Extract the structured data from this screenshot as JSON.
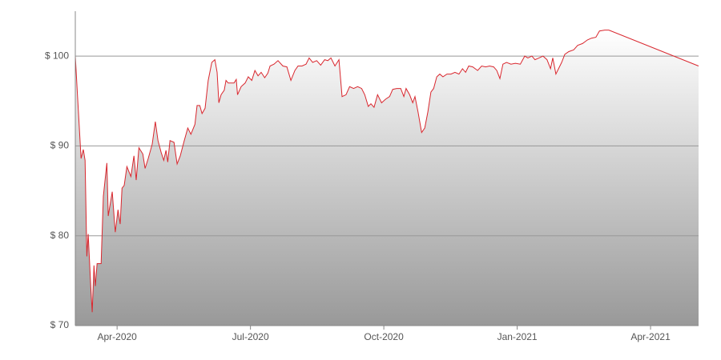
{
  "chart_data": {
    "type": "area",
    "color": "#d9272e",
    "x": [
      3.06,
      3.11,
      3.19,
      3.24,
      3.28,
      3.32,
      3.35,
      3.41,
      3.44,
      3.48,
      3.51,
      3.55,
      3.64,
      3.69,
      3.77,
      3.8,
      3.89,
      3.96,
      4.02,
      4.07,
      4.11,
      4.16,
      4.22,
      4.31,
      4.38,
      4.43,
      4.49,
      4.58,
      4.63,
      4.7,
      4.79,
      4.86,
      4.92,
      4.99,
      5.05,
      5.1,
      5.14,
      5.19,
      5.28,
      5.35,
      5.42,
      5.51,
      5.59,
      5.66,
      5.75,
      5.8,
      5.86,
      5.91,
      5.98,
      6.05,
      6.13,
      6.2,
      6.25,
      6.29,
      6.34,
      6.41,
      6.45,
      6.5,
      6.63,
      6.68,
      6.71,
      6.79,
      6.88,
      6.95,
      7.03,
      7.1,
      7.17,
      7.24,
      7.32,
      7.39,
      7.44,
      7.53,
      7.62,
      7.73,
      7.82,
      7.91,
      8.0,
      8.07,
      8.16,
      8.25,
      8.32,
      8.4,
      8.49,
      8.58,
      8.67,
      8.74,
      8.81,
      8.9,
      8.99,
      9.06,
      9.15,
      9.23,
      9.32,
      9.41,
      9.5,
      9.57,
      9.65,
      9.71,
      9.78,
      9.86,
      9.95,
      10.04,
      10.13,
      10.2,
      10.29,
      10.38,
      10.45,
      10.5,
      10.58,
      10.65,
      10.7,
      10.77,
      10.85,
      10.92,
      10.99,
      11.06,
      11.12,
      11.19,
      11.26,
      11.33,
      11.42,
      11.51,
      11.6,
      11.69,
      11.77,
      11.84,
      11.91,
      12.0,
      12.11,
      12.2,
      12.29,
      12.38,
      12.47,
      12.54,
      12.61,
      12.68,
      12.76,
      12.86,
      12.96,
      13.07,
      13.17,
      13.24,
      13.33,
      13.4,
      13.49,
      13.58,
      13.67,
      13.75,
      13.8,
      13.87,
      13.93,
      14.0,
      14.07,
      14.16,
      14.27,
      14.36,
      14.47,
      14.58,
      14.67,
      14.77,
      14.85,
      14.97,
      15.06,
      17.08
    ],
    "values": [
      100,
      95.5,
      88.6,
      89.6,
      88.4,
      77.7,
      80.2,
      74.2,
      71.5,
      76.7,
      74.4,
      76.9,
      76.9,
      84.4,
      88.1,
      82.2,
      84.9,
      80.4,
      82.9,
      81.3,
      85.3,
      85.6,
      87.7,
      86.6,
      88.9,
      86.2,
      89.8,
      89.1,
      87.5,
      88.6,
      90.2,
      92.7,
      90.6,
      89.3,
      88.4,
      89.5,
      88.2,
      90.6,
      90.4,
      88.0,
      88.9,
      90.6,
      92.0,
      91.3,
      92.4,
      94.5,
      94.5,
      93.6,
      94.2,
      97.3,
      99.3,
      99.6,
      98.2,
      94.8,
      95.7,
      96.2,
      97.3,
      97.0,
      97.0,
      97.4,
      95.7,
      96.6,
      97.0,
      97.7,
      97.3,
      98.4,
      97.8,
      98.2,
      97.6,
      98.1,
      98.9,
      99.1,
      99.5,
      98.9,
      98.8,
      97.3,
      98.4,
      98.9,
      98.9,
      99.1,
      99.8,
      99.3,
      99.5,
      99.0,
      99.6,
      99.5,
      99.8,
      98.9,
      99.6,
      95.5,
      95.7,
      96.6,
      96.4,
      96.6,
      96.4,
      95.7,
      94.4,
      94.7,
      94.3,
      95.7,
      94.8,
      95.2,
      95.5,
      96.3,
      96.4,
      96.4,
      95.5,
      96.4,
      95.7,
      94.8,
      95.5,
      93.8,
      91.5,
      92.0,
      93.8,
      96.0,
      96.4,
      97.7,
      98.0,
      97.7,
      98.0,
      98.0,
      98.2,
      98.0,
      98.6,
      98.2,
      98.9,
      98.8,
      98.4,
      98.9,
      98.8,
      98.9,
      98.8,
      98.4,
      97.5,
      99.1,
      99.3,
      99.1,
      99.2,
      99.1,
      100.0,
      99.8,
      100.0,
      99.6,
      99.8,
      100.0,
      99.6,
      98.6,
      99.8,
      98.0,
      98.6,
      99.3,
      100.2,
      100.5,
      100.7,
      101.2,
      101.4,
      101.8,
      102.0,
      102.1,
      102.8,
      102.9,
      102.9,
      98.9
    ],
    "xlim": [
      3.06,
      17.08
    ],
    "xticks": [
      {
        "value": 4,
        "label": "Apr-2020"
      },
      {
        "value": 7,
        "label": "Jul-2020"
      },
      {
        "value": 10,
        "label": "Oct-2020"
      },
      {
        "value": 13,
        "label": "Jan-2021"
      },
      {
        "value": 16,
        "label": "Apr-2021"
      }
    ],
    "ylim": [
      70,
      105
    ],
    "yticks": [
      {
        "value": 70,
        "label": "$ 70"
      },
      {
        "value": 80,
        "label": "$ 80"
      },
      {
        "value": 90,
        "label": "$ 90"
      },
      {
        "value": 100,
        "label": "$ 100"
      }
    ],
    "grid": true
  }
}
